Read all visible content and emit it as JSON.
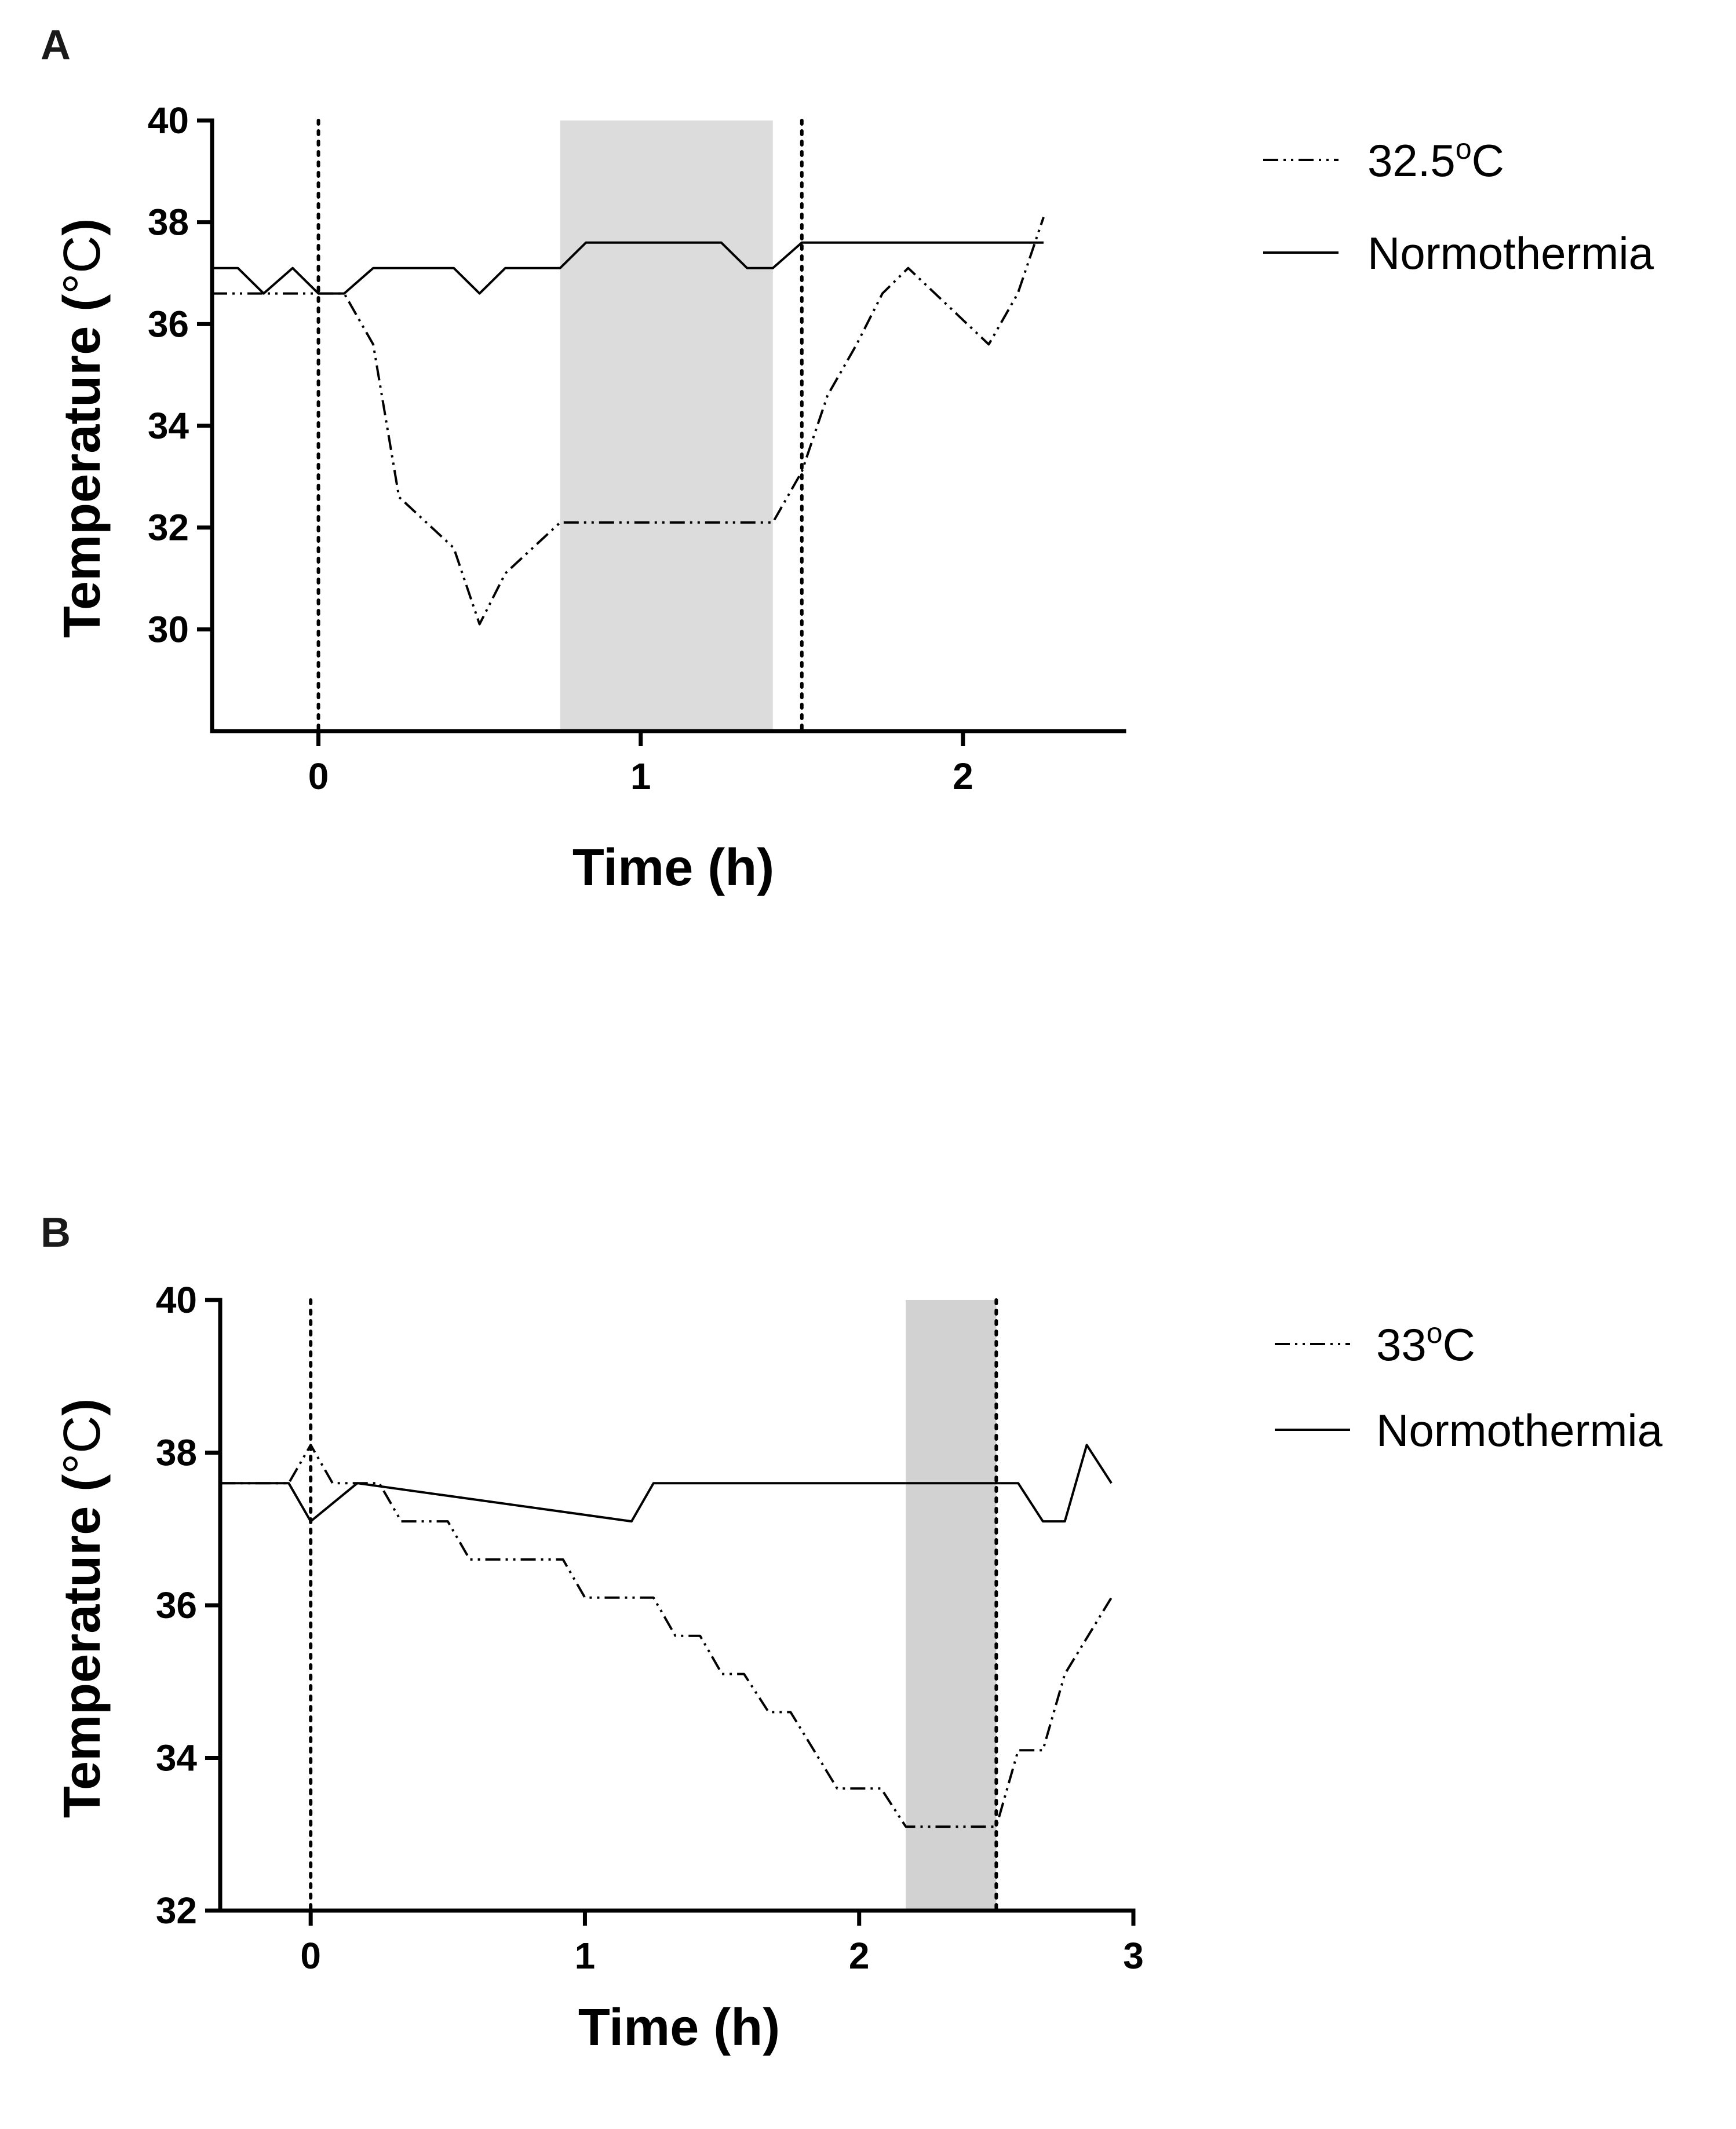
{
  "chart_data": [
    {
      "panel": "A",
      "type": "line",
      "xlabel": "Time (h)",
      "ylabel_main": "Temperature (",
      "ylabel_unit": "°C",
      "ylabel_close": ")",
      "xlim": [
        -0.33,
        2.5
      ],
      "ylim": [
        28,
        40
      ],
      "xticks": [
        0,
        1,
        2
      ],
      "yticks": [
        30,
        32,
        34,
        36,
        38,
        40
      ],
      "vlines": [
        0,
        1.5
      ],
      "shaded": [
        0.75,
        1.41
      ],
      "shade_color": "#dcdcdc",
      "legend": [
        {
          "series": 0,
          "text": "32.5",
          "sup": "o",
          "unit": "C"
        },
        {
          "series": 1,
          "text": "Normothermia",
          "sup": "",
          "unit": ""
        }
      ],
      "series": [
        {
          "name": "32.5°C",
          "style": "dashdot",
          "x": [
            -0.33,
            0.08,
            0.17,
            0.25,
            0.42,
            0.5,
            0.58,
            0.75,
            1.0,
            1.25,
            1.41,
            1.5,
            1.58,
            1.67,
            1.75,
            1.83,
            2.08,
            2.17,
            2.25
          ],
          "y": [
            36.6,
            36.6,
            35.6,
            32.6,
            31.6,
            30.1,
            31.1,
            32.1,
            32.1,
            32.1,
            32.1,
            33.1,
            34.6,
            35.6,
            36.6,
            37.1,
            35.6,
            36.6,
            38.1
          ]
        },
        {
          "name": "Normothermia",
          "style": "solid",
          "x": [
            -0.33,
            -0.25,
            -0.17,
            -0.08,
            0.0,
            0.08,
            0.17,
            0.42,
            0.5,
            0.58,
            0.75,
            0.83,
            1.0,
            1.25,
            1.33,
            1.41,
            1.5,
            2.0,
            2.25
          ],
          "y": [
            37.1,
            37.1,
            36.6,
            37.1,
            36.6,
            36.6,
            37.1,
            37.1,
            36.6,
            37.1,
            37.1,
            37.6,
            37.6,
            37.6,
            37.1,
            37.1,
            37.6,
            37.6,
            37.6
          ]
        }
      ]
    },
    {
      "panel": "B",
      "type": "line",
      "xlabel": "Time (h)",
      "ylabel_main": "Temperature (",
      "ylabel_unit": "°C",
      "ylabel_close": ")",
      "xlim": [
        -0.33,
        3.0
      ],
      "ylim": [
        32,
        40
      ],
      "xticks": [
        0,
        1,
        2,
        3
      ],
      "yticks": [
        32,
        34,
        36,
        38,
        40
      ],
      "vlines": [
        0,
        2.5
      ],
      "shaded": [
        2.17,
        2.5
      ],
      "shade_color": "#d2d2d2",
      "legend": [
        {
          "series": 0,
          "text": "33",
          "sup": "o",
          "unit": "C"
        },
        {
          "series": 1,
          "text": "Normothermia",
          "sup": "",
          "unit": ""
        }
      ],
      "series": [
        {
          "name": "33°C",
          "style": "dashdot",
          "x": [
            -0.33,
            -0.08,
            0.0,
            0.08,
            0.25,
            0.33,
            0.5,
            0.58,
            0.92,
            1.0,
            1.25,
            1.33,
            1.42,
            1.5,
            1.58,
            1.67,
            1.75,
            1.92,
            2.0,
            2.08,
            2.17,
            2.5,
            2.58,
            2.67,
            2.75,
            2.92
          ],
          "y": [
            37.6,
            37.6,
            38.1,
            37.6,
            37.6,
            37.1,
            37.1,
            36.6,
            36.6,
            36.1,
            36.1,
            35.6,
            35.6,
            35.1,
            35.1,
            34.6,
            34.6,
            33.6,
            33.6,
            33.6,
            33.1,
            33.1,
            34.1,
            34.1,
            35.1,
            36.1
          ]
        },
        {
          "name": "Normothermia",
          "style": "solid",
          "x": [
            -0.33,
            -0.08,
            0.0,
            0.17,
            1.17,
            1.25,
            2.58,
            2.67,
            2.75,
            2.83,
            2.92
          ],
          "y": [
            37.6,
            37.6,
            37.1,
            37.6,
            37.1,
            37.6,
            37.6,
            37.1,
            37.1,
            38.1,
            37.6
          ]
        }
      ]
    }
  ]
}
